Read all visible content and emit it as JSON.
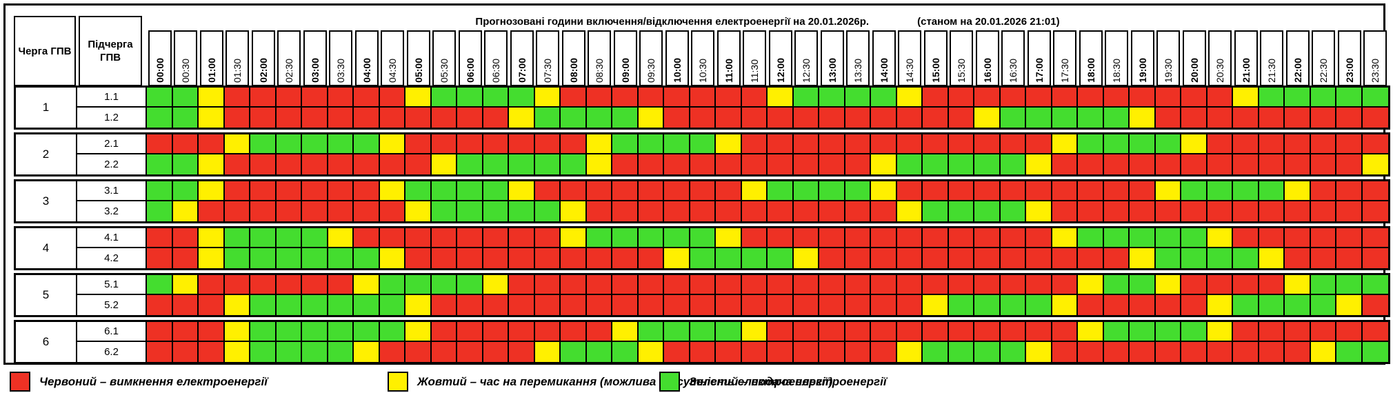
{
  "chart_data": {
    "type": "heatmap",
    "title": "Прогнозовані години включення/відключення електроенергії на 20.01.2026р.",
    "as_of": "(станом на 20.01.2026 21:01)",
    "x": [
      "00:00",
      "00:30",
      "01:00",
      "01:30",
      "02:00",
      "02:30",
      "03:00",
      "03:30",
      "04:00",
      "04:30",
      "05:00",
      "05:30",
      "06:00",
      "06:30",
      "07:00",
      "07:30",
      "08:00",
      "08:30",
      "09:00",
      "09:30",
      "10:00",
      "10:30",
      "11:00",
      "11:30",
      "12:00",
      "12:30",
      "13:00",
      "13:30",
      "14:00",
      "14:30",
      "15:00",
      "15:30",
      "16:00",
      "16:30",
      "17:00",
      "17:30",
      "18:00",
      "18:30",
      "19:00",
      "19:30",
      "20:00",
      "20:30",
      "21:00",
      "21:30",
      "22:00",
      "22:30",
      "23:00",
      "23:30"
    ],
    "cell_states": {
      "R": "вимкнення електроенергії",
      "Y": "час на перемикання (можлива відсутність електроенергії)",
      "G": "подача електроенергії"
    },
    "series": [
      {
        "queue": "1",
        "subqueue": "1.1",
        "slots": "GGYRRRRRRRYGGGGYRRRRRRRRYGGGGYRRRRRRRRRRRRYGGGGG"
      },
      {
        "queue": "1",
        "subqueue": "1.2",
        "slots": "GGYRRRRRRRRRRRYGGGGYRRRRRRRRRRRRYGGGGGYRRRRRRRRR"
      },
      {
        "queue": "2",
        "subqueue": "2.1",
        "slots": "RRRYGGGGGYRRRRRRRYGGGGYRRRRRRRRRRRRYGGGGYRRRRRRR"
      },
      {
        "queue": "2",
        "subqueue": "2.2",
        "slots": "GGYRRRRRRRRYGGGGGYRRRRRRRRRRYGGGGGYRRRRRRRRRRRRY"
      },
      {
        "queue": "3",
        "subqueue": "3.1",
        "slots": "GGYRRRRRRYGGGGYRRRRRRRRYGGGGYRRRRRRRRRRYGGGGYRRR"
      },
      {
        "queue": "3",
        "subqueue": "3.2",
        "slots": "GYRRRRRRRRYGGGGGYRRRRRRRRRRRRYGGGGYRRRRRRRRRRRRR"
      },
      {
        "queue": "4",
        "subqueue": "4.1",
        "slots": "RRYGGGGYRRRRRRRRYGGGGGYRRRRRRRRRRRRYGGGGGYRRRRRR"
      },
      {
        "queue": "4",
        "subqueue": "4.2",
        "slots": "RRYGGGGGGYRRRRRRRRRRYGGGGYRRRRRRRRRRRRYGGGGYRRRR"
      },
      {
        "queue": "5",
        "subqueue": "5.1",
        "slots": "GYRRRRRRYGGGGYRRRRRRRRRRRRRRRRRRRRRRYGGYRRRRYGGG"
      },
      {
        "queue": "5",
        "subqueue": "5.2",
        "slots": "RRRYGGGGGGYRRRRRRRRRRRRRRRRRRRYGGGGYRRRRRYGGGGYR"
      },
      {
        "queue": "6",
        "subqueue": "6.1",
        "slots": "RRRYGGGGGGYRRRRRRRYGGGGYRRRRRRRRRRRRYGGGGYRRRRRR"
      },
      {
        "queue": "6",
        "subqueue": "6.2",
        "slots": "RRRYGGGGYRRRRRRYGGGYRRRRRRRRRYGGGGYRRRRRRRRRRYGG"
      }
    ]
  },
  "header": {
    "queue_label": "Черга ГПВ",
    "subqueue_label": "Підчерга ГПВ"
  },
  "colors": {
    "R": "#ee3124",
    "Y": "#fff000",
    "G": "#44dd2f"
  },
  "legend": [
    {
      "key": "R",
      "label": "Червоний – вимкнення електроенергії"
    },
    {
      "key": "Y",
      "label": "Жовтий – час на перемикання (можлива відсутність електроенергії)"
    },
    {
      "key": "G",
      "label": "Зелений – подача електроенергії"
    }
  ]
}
